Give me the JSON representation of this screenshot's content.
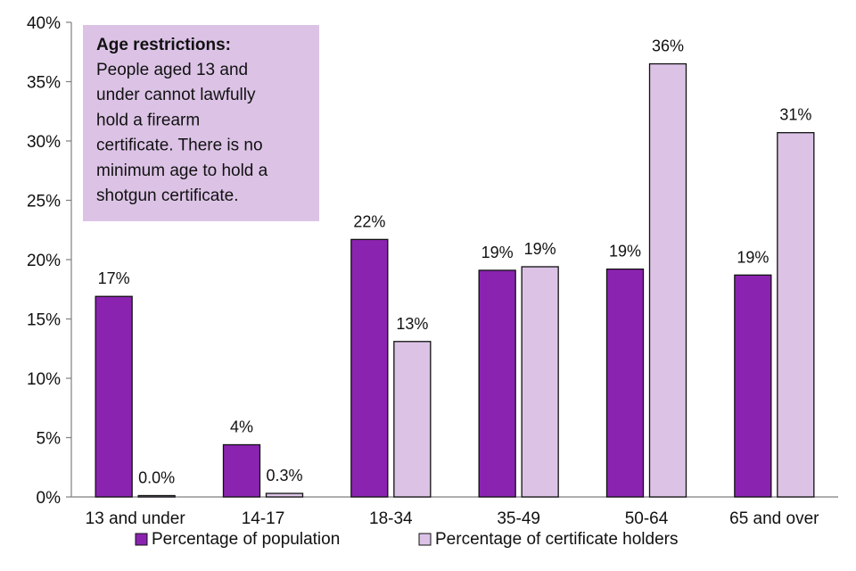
{
  "chart_data": {
    "type": "bar",
    "categories": [
      "13 and under",
      "14-17",
      "18-34",
      "35-49",
      "50-64",
      "65 and over"
    ],
    "series": [
      {
        "name": "Percentage of population",
        "color": "#8b23b1",
        "values": [
          16.9,
          4.4,
          21.7,
          19.1,
          19.2,
          18.7
        ],
        "labels": [
          "17%",
          "4%",
          "22%",
          "19%",
          "19%",
          "19%"
        ]
      },
      {
        "name": "Percentage of certificate holders",
        "color": "#dcc3e6",
        "values": [
          0.0,
          0.3,
          13.1,
          19.4,
          36.5,
          30.7
        ],
        "labels": [
          "0.0%",
          "0.3%",
          "13%",
          "19%",
          "36%",
          "31%"
        ]
      }
    ],
    "ylim": [
      0,
      40
    ],
    "yticks": [
      "0%",
      "5%",
      "10%",
      "15%",
      "20%",
      "25%",
      "30%",
      "35%",
      "40%"
    ],
    "grid": false,
    "legend_position": "bottom",
    "annotation": {
      "title": "Age restrictions:",
      "lines": [
        "People aged 13 and",
        "under cannot lawfully",
        "hold a firearm",
        "certificate. There is no",
        "minimum  age to hold a",
        "shotgun certificate."
      ],
      "background": "#dcc3e6"
    }
  }
}
